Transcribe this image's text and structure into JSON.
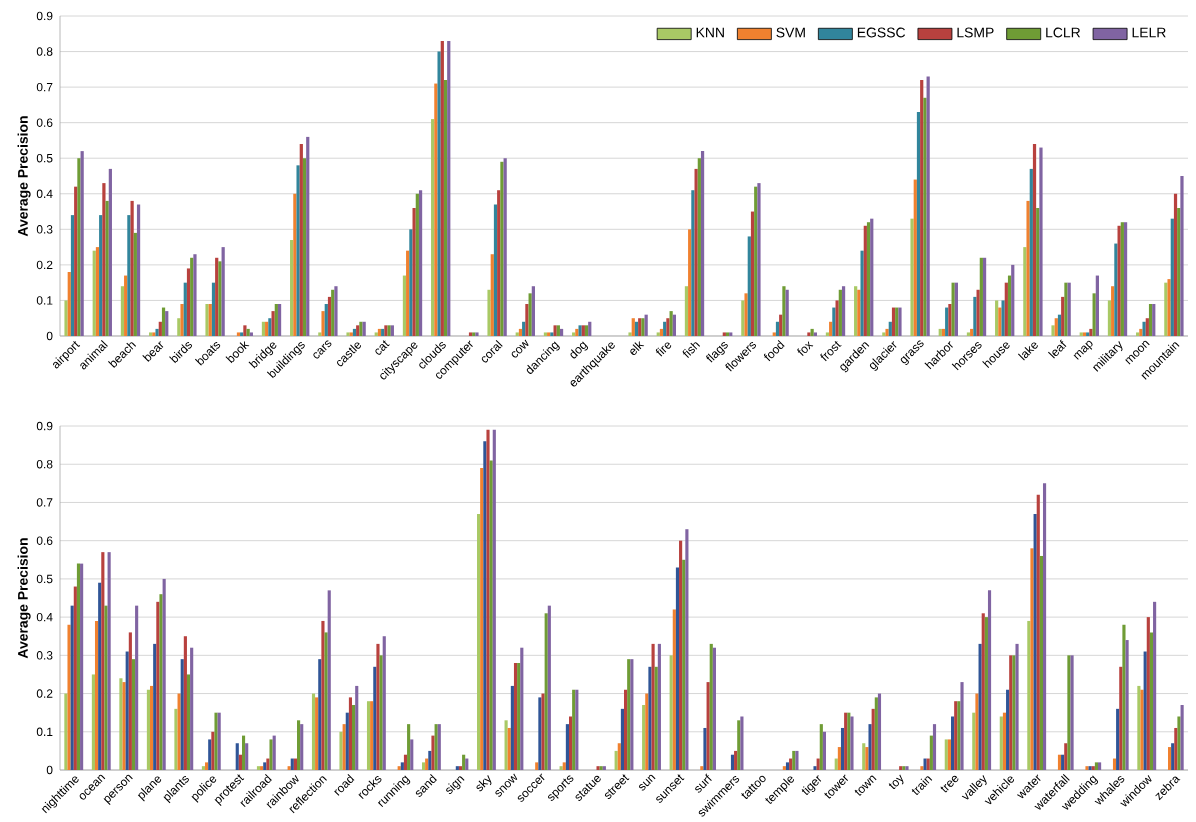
{
  "chart_data": [
    {
      "type": "bar",
      "ylabel": "Average Precision",
      "ylim": [
        0,
        0.9
      ],
      "yticks": [
        0,
        0.1,
        0.2,
        0.3,
        0.4,
        0.5,
        0.6,
        0.7,
        0.8,
        0.9
      ],
      "grid": "y",
      "legend": "top right",
      "categories": [
        "airport",
        "animal",
        "beach",
        "bear",
        "birds",
        "boats",
        "book",
        "bridge",
        "buildings",
        "cars",
        "castle",
        "cat",
        "cityscape",
        "clouds",
        "computer",
        "coral",
        "cow",
        "dancing",
        "dog",
        "earthquake",
        "elk",
        "fire",
        "fish",
        "flags",
        "flowers",
        "food",
        "fox",
        "frost",
        "garden",
        "glacier",
        "grass",
        "harbor",
        "horses",
        "house",
        "lake",
        "leaf",
        "map",
        "military",
        "moon",
        "mountain"
      ],
      "series": [
        {
          "name": "KNN",
          "color": "#a9c965",
          "values": [
            0.1,
            0.24,
            0.14,
            0.01,
            0.05,
            0.09,
            0.0,
            0.04,
            0.27,
            0.01,
            0.01,
            0.01,
            0.17,
            0.61,
            0.0,
            0.13,
            0.01,
            0.01,
            0.01,
            0.0,
            0.01,
            0.01,
            0.14,
            0.0,
            0.1,
            0.0,
            0.0,
            0.01,
            0.14,
            0.01,
            0.33,
            0.02,
            0.01,
            0.1,
            0.25,
            0.03,
            0.01,
            0.1,
            0.01,
            0.15
          ]
        },
        {
          "name": "SVM",
          "color": "#f0812f",
          "values": [
            0.18,
            0.25,
            0.17,
            0.01,
            0.09,
            0.09,
            0.01,
            0.04,
            0.4,
            0.07,
            0.01,
            0.02,
            0.24,
            0.71,
            0.0,
            0.23,
            0.02,
            0.01,
            0.02,
            0.0,
            0.05,
            0.02,
            0.3,
            0.0,
            0.12,
            0.01,
            0.0,
            0.04,
            0.13,
            0.02,
            0.44,
            0.02,
            0.02,
            0.08,
            0.38,
            0.05,
            0.01,
            0.14,
            0.02,
            0.16
          ]
        },
        {
          "name": "EGSSC",
          "color": "#31859c",
          "values": [
            0.34,
            0.34,
            0.34,
            0.02,
            0.15,
            0.15,
            0.01,
            0.05,
            0.48,
            0.09,
            0.02,
            0.02,
            0.3,
            0.8,
            0.0,
            0.37,
            0.04,
            0.01,
            0.03,
            0.0,
            0.04,
            0.04,
            0.41,
            0.0,
            0.28,
            0.04,
            0.0,
            0.08,
            0.24,
            0.04,
            0.63,
            0.08,
            0.11,
            0.1,
            0.47,
            0.06,
            0.01,
            0.26,
            0.04,
            0.33
          ]
        },
        {
          "name": "LSMP",
          "color": "#b8413e",
          "values": [
            0.42,
            0.43,
            0.38,
            0.04,
            0.19,
            0.22,
            0.03,
            0.07,
            0.54,
            0.11,
            0.03,
            0.03,
            0.36,
            0.83,
            0.01,
            0.41,
            0.09,
            0.03,
            0.03,
            0.0,
            0.05,
            0.05,
            0.47,
            0.01,
            0.35,
            0.06,
            0.01,
            0.1,
            0.31,
            0.08,
            0.72,
            0.09,
            0.13,
            0.15,
            0.54,
            0.11,
            0.02,
            0.31,
            0.05,
            0.4
          ]
        },
        {
          "name": "LCLR",
          "color": "#6f9c35",
          "values": [
            0.5,
            0.38,
            0.29,
            0.08,
            0.22,
            0.21,
            0.02,
            0.09,
            0.5,
            0.13,
            0.04,
            0.03,
            0.4,
            0.72,
            0.01,
            0.49,
            0.12,
            0.03,
            0.03,
            0.0,
            0.05,
            0.07,
            0.5,
            0.01,
            0.42,
            0.14,
            0.02,
            0.13,
            0.32,
            0.08,
            0.67,
            0.15,
            0.22,
            0.17,
            0.36,
            0.15,
            0.12,
            0.32,
            0.09,
            0.36
          ]
        },
        {
          "name": "LELR",
          "color": "#8064a2",
          "values": [
            0.52,
            0.47,
            0.37,
            0.07,
            0.23,
            0.25,
            0.01,
            0.09,
            0.56,
            0.14,
            0.04,
            0.03,
            0.41,
            0.83,
            0.01,
            0.5,
            0.14,
            0.02,
            0.04,
            0.0,
            0.06,
            0.06,
            0.52,
            0.01,
            0.43,
            0.13,
            0.01,
            0.14,
            0.33,
            0.08,
            0.73,
            0.15,
            0.22,
            0.2,
            0.53,
            0.15,
            0.17,
            0.32,
            0.09,
            0.45
          ]
        }
      ]
    },
    {
      "type": "bar",
      "ylabel": "Average Precision",
      "ylim": [
        0,
        0.9
      ],
      "yticks": [
        0,
        0.1,
        0.2,
        0.3,
        0.4,
        0.5,
        0.6,
        0.7,
        0.8,
        0.9
      ],
      "grid": "y",
      "categories": [
        "nighttime",
        "ocean",
        "person",
        "plane",
        "plants",
        "police",
        "protest",
        "railroad",
        "rainbow",
        "reflection",
        "road",
        "rocks",
        "running",
        "sand",
        "sign",
        "sky",
        "snow",
        "soccer",
        "sports",
        "statue",
        "street",
        "sun",
        "sunset",
        "surf",
        "swimmers",
        "tattoo",
        "temple",
        "tiger",
        "tower",
        "town",
        "toy",
        "train",
        "tree",
        "valley",
        "vehicle",
        "water",
        "waterfall",
        "wedding",
        "whales",
        "window",
        "zebra"
      ],
      "series": [
        {
          "color": "#a9c965",
          "values": [
            0.2,
            0.25,
            0.24,
            0.21,
            0.16,
            0.01,
            0.0,
            0.01,
            0.0,
            0.2,
            0.1,
            0.18,
            0.0,
            0.02,
            0.0,
            0.67,
            0.13,
            0.0,
            0.01,
            0.0,
            0.05,
            0.17,
            0.3,
            0.0,
            0.0,
            0.0,
            0.0,
            0.0,
            0.03,
            0.07,
            0.0,
            0.0,
            0.08,
            0.15,
            0.14,
            0.39,
            0.0,
            0.0,
            0.0,
            0.22,
            0.0
          ]
        },
        {
          "color": "#f0812f",
          "values": [
            0.38,
            0.39,
            0.23,
            0.22,
            0.2,
            0.02,
            0.0,
            0.01,
            0.01,
            0.19,
            0.12,
            0.18,
            0.01,
            0.03,
            0.0,
            0.79,
            0.11,
            0.02,
            0.02,
            0.0,
            0.07,
            0.2,
            0.42,
            0.01,
            0.0,
            0.0,
            0.01,
            0.0,
            0.06,
            0.06,
            0.0,
            0.01,
            0.08,
            0.2,
            0.15,
            0.58,
            0.04,
            0.01,
            0.03,
            0.21,
            0.06
          ]
        },
        {
          "color": "#2f5597",
          "values": [
            0.43,
            0.49,
            0.31,
            0.33,
            0.29,
            0.08,
            0.07,
            0.02,
            0.03,
            0.29,
            0.15,
            0.27,
            0.02,
            0.05,
            0.01,
            0.86,
            0.22,
            0.19,
            0.12,
            0.0,
            0.16,
            0.27,
            0.53,
            0.11,
            0.04,
            0.0,
            0.02,
            0.01,
            0.11,
            0.12,
            0.0,
            0.03,
            0.14,
            0.33,
            0.21,
            0.67,
            0.04,
            0.01,
            0.16,
            0.31,
            0.07
          ]
        },
        {
          "color": "#b8413e",
          "values": [
            0.48,
            0.57,
            0.36,
            0.44,
            0.35,
            0.1,
            0.04,
            0.03,
            0.03,
            0.39,
            0.19,
            0.33,
            0.04,
            0.09,
            0.01,
            0.89,
            0.28,
            0.2,
            0.14,
            0.01,
            0.21,
            0.33,
            0.6,
            0.23,
            0.05,
            0.0,
            0.03,
            0.03,
            0.15,
            0.16,
            0.01,
            0.03,
            0.18,
            0.41,
            0.3,
            0.72,
            0.07,
            0.01,
            0.27,
            0.4,
            0.11
          ]
        },
        {
          "color": "#6f9c35",
          "values": [
            0.54,
            0.43,
            0.29,
            0.46,
            0.25,
            0.15,
            0.09,
            0.08,
            0.13,
            0.36,
            0.17,
            0.3,
            0.12,
            0.12,
            0.04,
            0.81,
            0.28,
            0.41,
            0.21,
            0.01,
            0.29,
            0.27,
            0.55,
            0.33,
            0.13,
            0.0,
            0.05,
            0.12,
            0.15,
            0.19,
            0.01,
            0.09,
            0.18,
            0.4,
            0.3,
            0.56,
            0.3,
            0.02,
            0.38,
            0.36,
            0.14
          ]
        },
        {
          "color": "#8064a2",
          "values": [
            0.54,
            0.57,
            0.43,
            0.5,
            0.32,
            0.15,
            0.07,
            0.09,
            0.12,
            0.47,
            0.22,
            0.35,
            0.08,
            0.12,
            0.03,
            0.89,
            0.32,
            0.43,
            0.21,
            0.01,
            0.29,
            0.33,
            0.63,
            0.32,
            0.14,
            0.0,
            0.05,
            0.1,
            0.14,
            0.2,
            0.01,
            0.12,
            0.23,
            0.47,
            0.33,
            0.75,
            0.3,
            0.02,
            0.34,
            0.44,
            0.17
          ]
        }
      ]
    }
  ]
}
